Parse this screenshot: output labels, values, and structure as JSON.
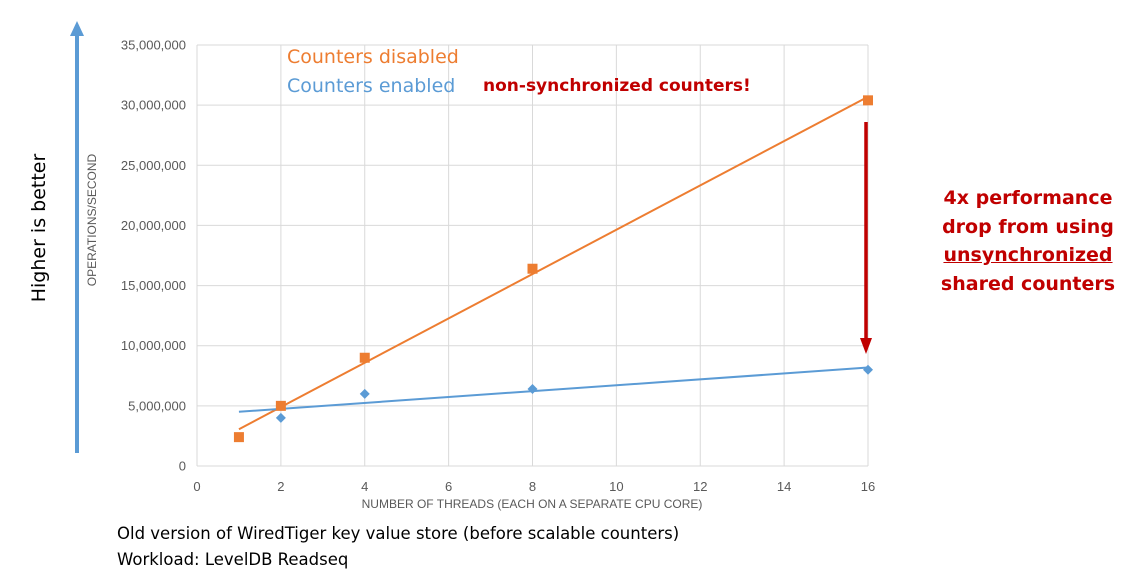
{
  "chart_data": {
    "type": "line",
    "xlabel": "NUMBER OF THREADS (EACH ON A SEPARATE CPU CORE)",
    "ylabel": "OPERATIONS/SECOND",
    "xlim": [
      0,
      16
    ],
    "ylim": [
      0,
      35000000
    ],
    "x_ticks": [
      "0",
      "2",
      "4",
      "6",
      "8",
      "10",
      "12",
      "14",
      "16"
    ],
    "y_ticks": [
      "0",
      "5,000,000",
      "10,000,000",
      "15,000,000",
      "20,000,000",
      "25,000,000",
      "30,000,000",
      "35,000,000"
    ],
    "grid": "vertical and horizontal",
    "legend_placement": "top-left",
    "series": [
      {
        "name": "Counters disabled",
        "color": "#ed7d31",
        "marker": "square",
        "trendline": "linear",
        "x": [
          1,
          2,
          4,
          8,
          16
        ],
        "y": [
          2400000,
          5000000,
          9000000,
          16400000,
          30400000
        ]
      },
      {
        "name": "Counters enabled",
        "color": "#5b9bd5",
        "marker": "diamond",
        "trendline": "linear",
        "x": [
          2,
          4,
          8,
          16
        ],
        "y": [
          4000000,
          6000000,
          6400000,
          8000000
        ]
      }
    ],
    "annotation": "non-synchronized counters!"
  },
  "side_label": "Higher is better",
  "performance_note": {
    "line1": "4x performance",
    "line2": "drop from using",
    "line3": "unsynchronized",
    "line4": "shared counters"
  },
  "captions": {
    "line1": "Old version of WiredTiger key value store (before scalable counters)",
    "line2": "Workload: LevelDB Readseq"
  },
  "colors": {
    "side_arrow": "#5b9bd5",
    "callout": "#c00000",
    "grid": "#d9d9d9"
  }
}
